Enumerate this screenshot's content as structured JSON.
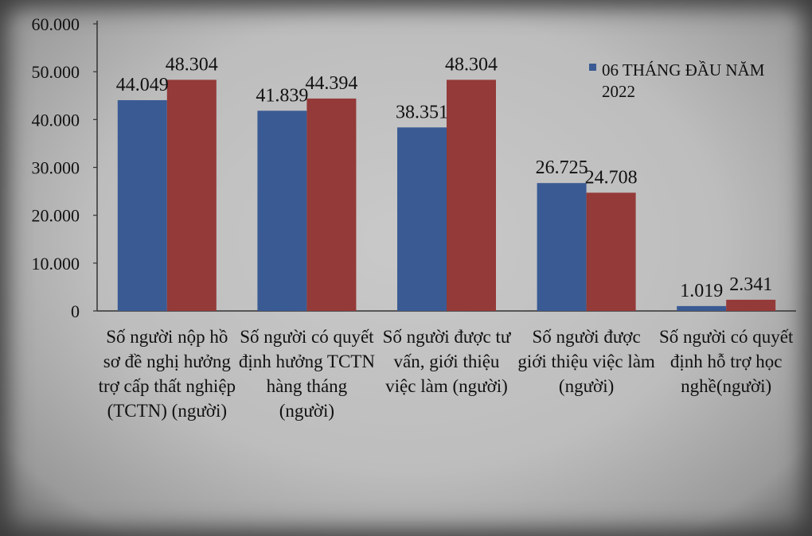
{
  "chart_data": {
    "type": "bar",
    "categories": [
      "Số người nộp hồ sơ đề nghị hưởng trợ cấp thất nghiệp (TCTN) (người)",
      "Số người có quyết định hưởng TCTN hàng tháng (người)",
      "Số người được tư vấn, giới thiệu việc làm (người)",
      "Số người được giới thiệu việc làm (người)",
      "Số người có quyết định hỗ trợ học nghề(người)"
    ],
    "series": [
      {
        "name": "",
        "color": "#3a5a93",
        "values": [
          44049,
          41839,
          38351,
          26725,
          1019
        ],
        "labels": [
          "44.049",
          "41.839",
          "38.351",
          "26.725",
          "1.019"
        ]
      },
      {
        "name": "",
        "color": "#943a38",
        "values": [
          48304,
          44394,
          48304,
          24708,
          2341
        ],
        "labels": [
          "48.304",
          "44.394",
          "48.304",
          "24.708",
          "2.341"
        ]
      }
    ],
    "yticks": [
      "0",
      "10.000",
      "20.000",
      "30.000",
      "40.000",
      "50.000",
      "60.000"
    ],
    "ylim": [
      0,
      60000
    ],
    "legend": {
      "entries": [
        {
          "label": "06 THÁNG ĐẦU NĂM 2022",
          "color": "#3a5a93"
        }
      ],
      "placement": "top-right"
    },
    "title": "",
    "xlabel": "",
    "ylabel": ""
  }
}
